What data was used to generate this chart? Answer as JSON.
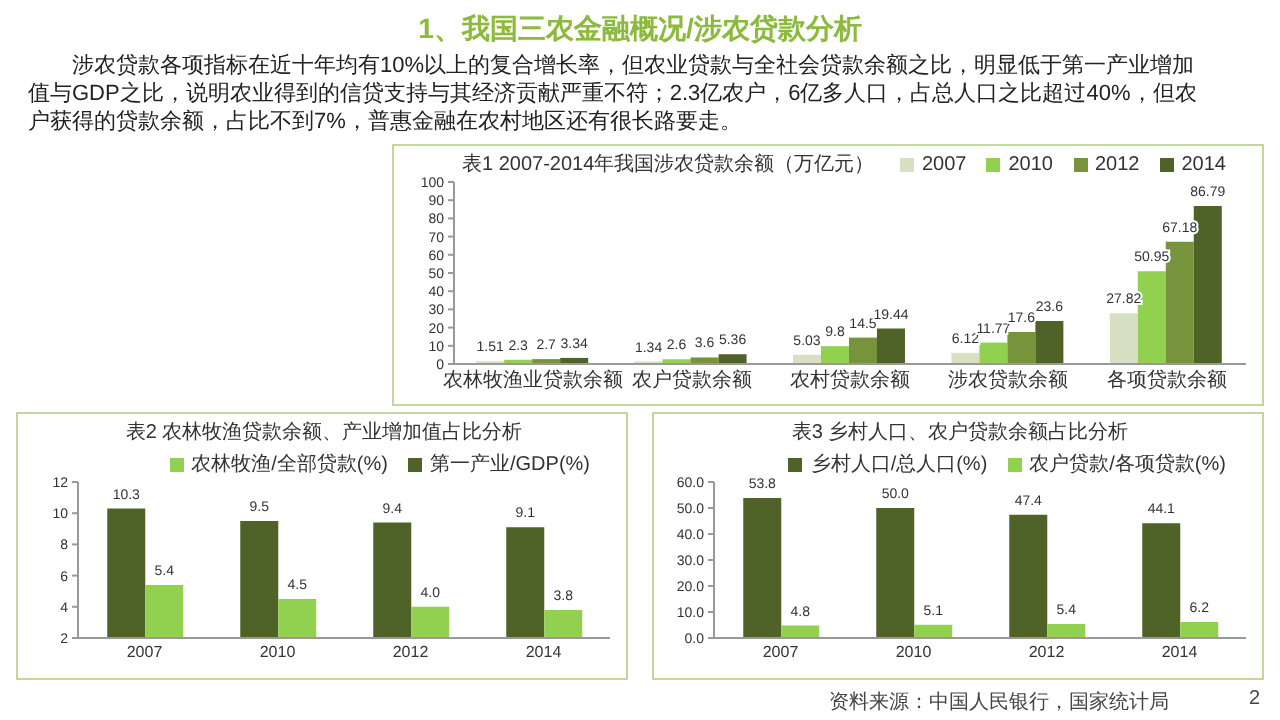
{
  "chart_data": [
    {
      "type": "other",
      "title": "1、我国三农金融概况/涉农贷款分析",
      "subtitle": "涉农贷款各项指标在近十年均有10%以上的复合增长率，但农业贷款与全社会贷款余额之比，明显低于第一产业增加值与GDP之比，说明农业得到的信贷支持与其经济贡献严重不符；2.3亿农户，6亿多人口，占总人口之比超过40%，但农户获得的贷款余额，占比不到7%，普惠金融在农村地区还有很长路要走。",
      "annotations": [
        "资料来源：中国人民银行，国家统计局",
        "2"
      ]
    },
    {
      "type": "bar",
      "title": "表1 2007-2014年我国涉农贷款余额（万亿元）",
      "categories": [
        "农林牧渔业贷款余额",
        "农户贷款余额",
        "农村贷款余额",
        "涉农贷款余额",
        "各项贷款余额"
      ],
      "series": [
        {
          "name": "2007",
          "color": "#d8e0c4",
          "values": [
            1.51,
            1.34,
            5.03,
            6.12,
            27.82
          ]
        },
        {
          "name": "2010",
          "color": "#92d050",
          "values": [
            2.3,
            2.6,
            9.8,
            11.77,
            50.95
          ]
        },
        {
          "name": "2012",
          "color": "#77933c",
          "values": [
            2.7,
            3.6,
            14.5,
            17.6,
            67.18
          ]
        },
        {
          "name": "2014",
          "color": "#4f6228",
          "values": [
            3.34,
            5.36,
            19.44,
            23.6,
            86.79
          ]
        }
      ],
      "ylim": [
        0,
        100
      ],
      "yticks": [
        0,
        10,
        20,
        30,
        40,
        50,
        60,
        70,
        80,
        90,
        100
      ],
      "data_labels": true,
      "legend": "top right"
    },
    {
      "type": "bar",
      "title": "表2 农林牧渔贷款余额、产业增加值占比分析",
      "categories": [
        "2007",
        "2010",
        "2012",
        "2014"
      ],
      "series": [
        {
          "name": "第一产业/GDP(%)",
          "color": "#4f6228",
          "values": [
            10.3,
            9.5,
            9.4,
            9.1
          ],
          "value_labels": [
            "10.3",
            "9.5",
            "9.4",
            "9.1"
          ]
        },
        {
          "name": "农林牧渔/全部贷款(%)",
          "color": "#92d050",
          "values": [
            5.4,
            4.5,
            4.0,
            3.8
          ],
          "value_labels": [
            "5.4",
            "4.5",
            "4.0",
            "3.8"
          ]
        }
      ],
      "ylim": [
        2,
        12
      ],
      "yticks": [
        2,
        4,
        6,
        8,
        10,
        12
      ],
      "legend": "top right"
    },
    {
      "type": "bar",
      "title": "表3 乡村人口、农户贷款余额占比分析",
      "categories": [
        "2007",
        "2010",
        "2012",
        "2014"
      ],
      "series": [
        {
          "name": "乡村人口/总人口(%)",
          "color": "#4f6228",
          "values": [
            53.8,
            50.0,
            47.4,
            44.1
          ],
          "value_labels": [
            "53.8",
            "50.0",
            "47.4",
            "44.1"
          ]
        },
        {
          "name": "农户贷款/各项贷款(%)",
          "color": "#92d050",
          "values": [
            4.8,
            5.1,
            5.4,
            6.2
          ],
          "value_labels": [
            "4.8",
            "5.1",
            "5.4",
            "6.2"
          ]
        }
      ],
      "ylim": [
        0,
        60
      ],
      "yticks": [
        {
          "value": 0,
          "label": "0.0"
        },
        {
          "value": 10,
          "label": "10.0"
        },
        {
          "value": 20,
          "label": "20.0"
        },
        {
          "value": 30,
          "label": "30.0"
        },
        {
          "value": 40,
          "label": "40.0"
        },
        {
          "value": 50,
          "label": "50.0"
        },
        {
          "value": 60,
          "label": "60.0"
        }
      ],
      "legend": "top right"
    }
  ]
}
